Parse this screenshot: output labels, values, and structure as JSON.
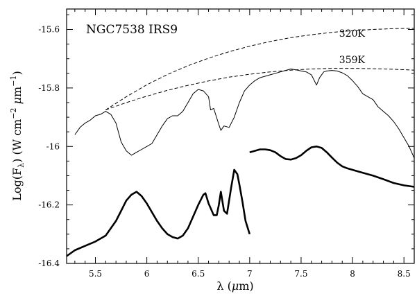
{
  "chart_data": {
    "type": "line",
    "title": "NGC7538 IRS9",
    "xlabel": "λ (μm)",
    "ylabel": "Log(F_λ) (W cm^-2 μm^-1)",
    "xlim": [
      5.22,
      8.6
    ],
    "ylim": [
      -16.4,
      -15.53
    ],
    "xticks": [
      5.5,
      6,
      6.5,
      7,
      7.5,
      8,
      8.5
    ],
    "xtick_labels": [
      "5.5",
      "6",
      "6.5",
      "7",
      "7.5",
      "8",
      "8.5"
    ],
    "yticks": [
      -16.4,
      -16.2,
      -16.0,
      -15.8,
      -15.6
    ],
    "ytick_labels": [
      "-16.4",
      "-16.2",
      "-16",
      "-15.8",
      "-15.6"
    ],
    "annotations": [
      {
        "text": "320K",
        "x": 7.87,
        "y": -15.625
      },
      {
        "text": "359K",
        "x": 7.87,
        "y": -15.715
      }
    ],
    "series": [
      {
        "style": "dashed",
        "x": [
          5.6,
          5.8,
          6.0,
          6.2,
          6.4,
          6.6,
          6.8,
          7.0,
          7.2,
          7.4,
          7.6,
          7.8,
          8.0,
          8.2,
          8.4,
          8.6
        ],
        "y": [
          -15.875,
          -15.83,
          -15.789,
          -15.754,
          -15.724,
          -15.698,
          -15.676,
          -15.657,
          -15.641,
          -15.628,
          -15.618,
          -15.61,
          -15.604,
          -15.6,
          -15.597,
          -15.596
        ]
      },
      {
        "style": "dashed",
        "x": [
          5.6,
          5.8,
          6.0,
          6.2,
          6.4,
          6.6,
          6.8,
          7.0,
          7.2,
          7.4,
          7.6,
          7.8,
          8.0,
          8.2,
          8.4,
          8.6
        ],
        "y": [
          -15.875,
          -15.85,
          -15.828,
          -15.808,
          -15.791,
          -15.776,
          -15.763,
          -15.753,
          -15.745,
          -15.739,
          -15.735,
          -15.733,
          -15.733,
          -15.734,
          -15.736,
          -15.739
        ]
      },
      {
        "style": "solid-thin",
        "x": [
          5.3,
          5.35,
          5.4,
          5.45,
          5.5,
          5.55,
          5.6,
          5.65,
          5.7,
          5.75,
          5.8,
          5.85,
          5.9,
          5.95,
          6.0,
          6.05,
          6.1,
          6.15,
          6.2,
          6.25,
          6.3,
          6.35,
          6.4,
          6.45,
          6.5,
          6.55,
          6.6,
          6.62,
          6.65,
          6.7,
          6.72,
          6.75,
          6.8,
          6.85,
          6.9,
          6.95,
          7.0,
          7.05,
          7.1,
          7.15,
          7.2,
          7.25,
          7.3,
          7.35,
          7.4,
          7.45,
          7.5,
          7.55,
          7.6,
          7.65,
          7.68,
          7.72,
          7.75,
          7.8,
          7.85,
          7.9,
          7.95,
          8.0,
          8.05,
          8.1,
          8.15,
          8.2,
          8.25,
          8.3,
          8.35,
          8.4,
          8.45,
          8.5,
          8.55,
          8.6
        ],
        "y": [
          -15.96,
          -15.935,
          -15.92,
          -15.91,
          -15.895,
          -15.89,
          -15.88,
          -15.89,
          -15.92,
          -15.985,
          -16.015,
          -16.03,
          -16.02,
          -16.01,
          -16.0,
          -15.99,
          -15.96,
          -15.93,
          -15.905,
          -15.895,
          -15.895,
          -15.88,
          -15.85,
          -15.82,
          -15.805,
          -15.81,
          -15.83,
          -15.875,
          -15.87,
          -15.925,
          -15.945,
          -15.93,
          -15.935,
          -15.9,
          -15.85,
          -15.81,
          -15.79,
          -15.775,
          -15.765,
          -15.76,
          -15.755,
          -15.75,
          -15.745,
          -15.74,
          -15.735,
          -15.738,
          -15.742,
          -15.745,
          -15.755,
          -15.79,
          -15.765,
          -15.745,
          -15.742,
          -15.74,
          -15.742,
          -15.748,
          -15.758,
          -15.775,
          -15.795,
          -15.82,
          -15.83,
          -15.84,
          -15.865,
          -15.88,
          -15.895,
          -15.915,
          -15.94,
          -15.97,
          -16.0,
          -16.04
        ]
      },
      {
        "style": "solid-thick",
        "x": [
          5.22,
          5.3,
          5.4,
          5.5,
          5.6,
          5.7,
          5.75,
          5.8,
          5.85,
          5.9,
          5.95,
          6.0,
          6.05,
          6.1,
          6.15,
          6.2,
          6.25,
          6.3,
          6.35,
          6.4,
          6.45,
          6.5,
          6.55,
          6.57,
          6.6,
          6.65,
          6.68,
          6.7,
          6.72,
          6.75,
          6.78,
          6.8,
          6.82,
          6.85,
          6.88,
          6.9,
          6.93,
          6.96,
          7.0
        ],
        "y": [
          -16.375,
          -16.355,
          -16.34,
          -16.325,
          -16.305,
          -16.255,
          -16.22,
          -16.185,
          -16.165,
          -16.155,
          -16.17,
          -16.195,
          -16.225,
          -16.255,
          -16.28,
          -16.3,
          -16.31,
          -16.315,
          -16.305,
          -16.28,
          -16.24,
          -16.2,
          -16.165,
          -16.16,
          -16.195,
          -16.235,
          -16.235,
          -16.2,
          -16.155,
          -16.22,
          -16.23,
          -16.185,
          -16.14,
          -16.08,
          -16.095,
          -16.13,
          -16.19,
          -16.255,
          -16.3
        ]
      },
      {
        "style": "solid-thick",
        "x": [
          7.0,
          7.05,
          7.1,
          7.15,
          7.2,
          7.25,
          7.3,
          7.35,
          7.4,
          7.45,
          7.5,
          7.55,
          7.6,
          7.65,
          7.7,
          7.75,
          7.8,
          7.85,
          7.9,
          7.95,
          8.0,
          8.1,
          8.2,
          8.3,
          8.4,
          8.5,
          8.6
        ],
        "y": [
          -16.02,
          -16.015,
          -16.01,
          -16.01,
          -16.013,
          -16.02,
          -16.033,
          -16.043,
          -16.045,
          -16.04,
          -16.03,
          -16.015,
          -16.003,
          -16.0,
          -16.005,
          -16.02,
          -16.038,
          -16.055,
          -16.068,
          -16.075,
          -16.08,
          -16.09,
          -16.1,
          -16.112,
          -16.125,
          -16.133,
          -16.138
        ]
      }
    ]
  }
}
